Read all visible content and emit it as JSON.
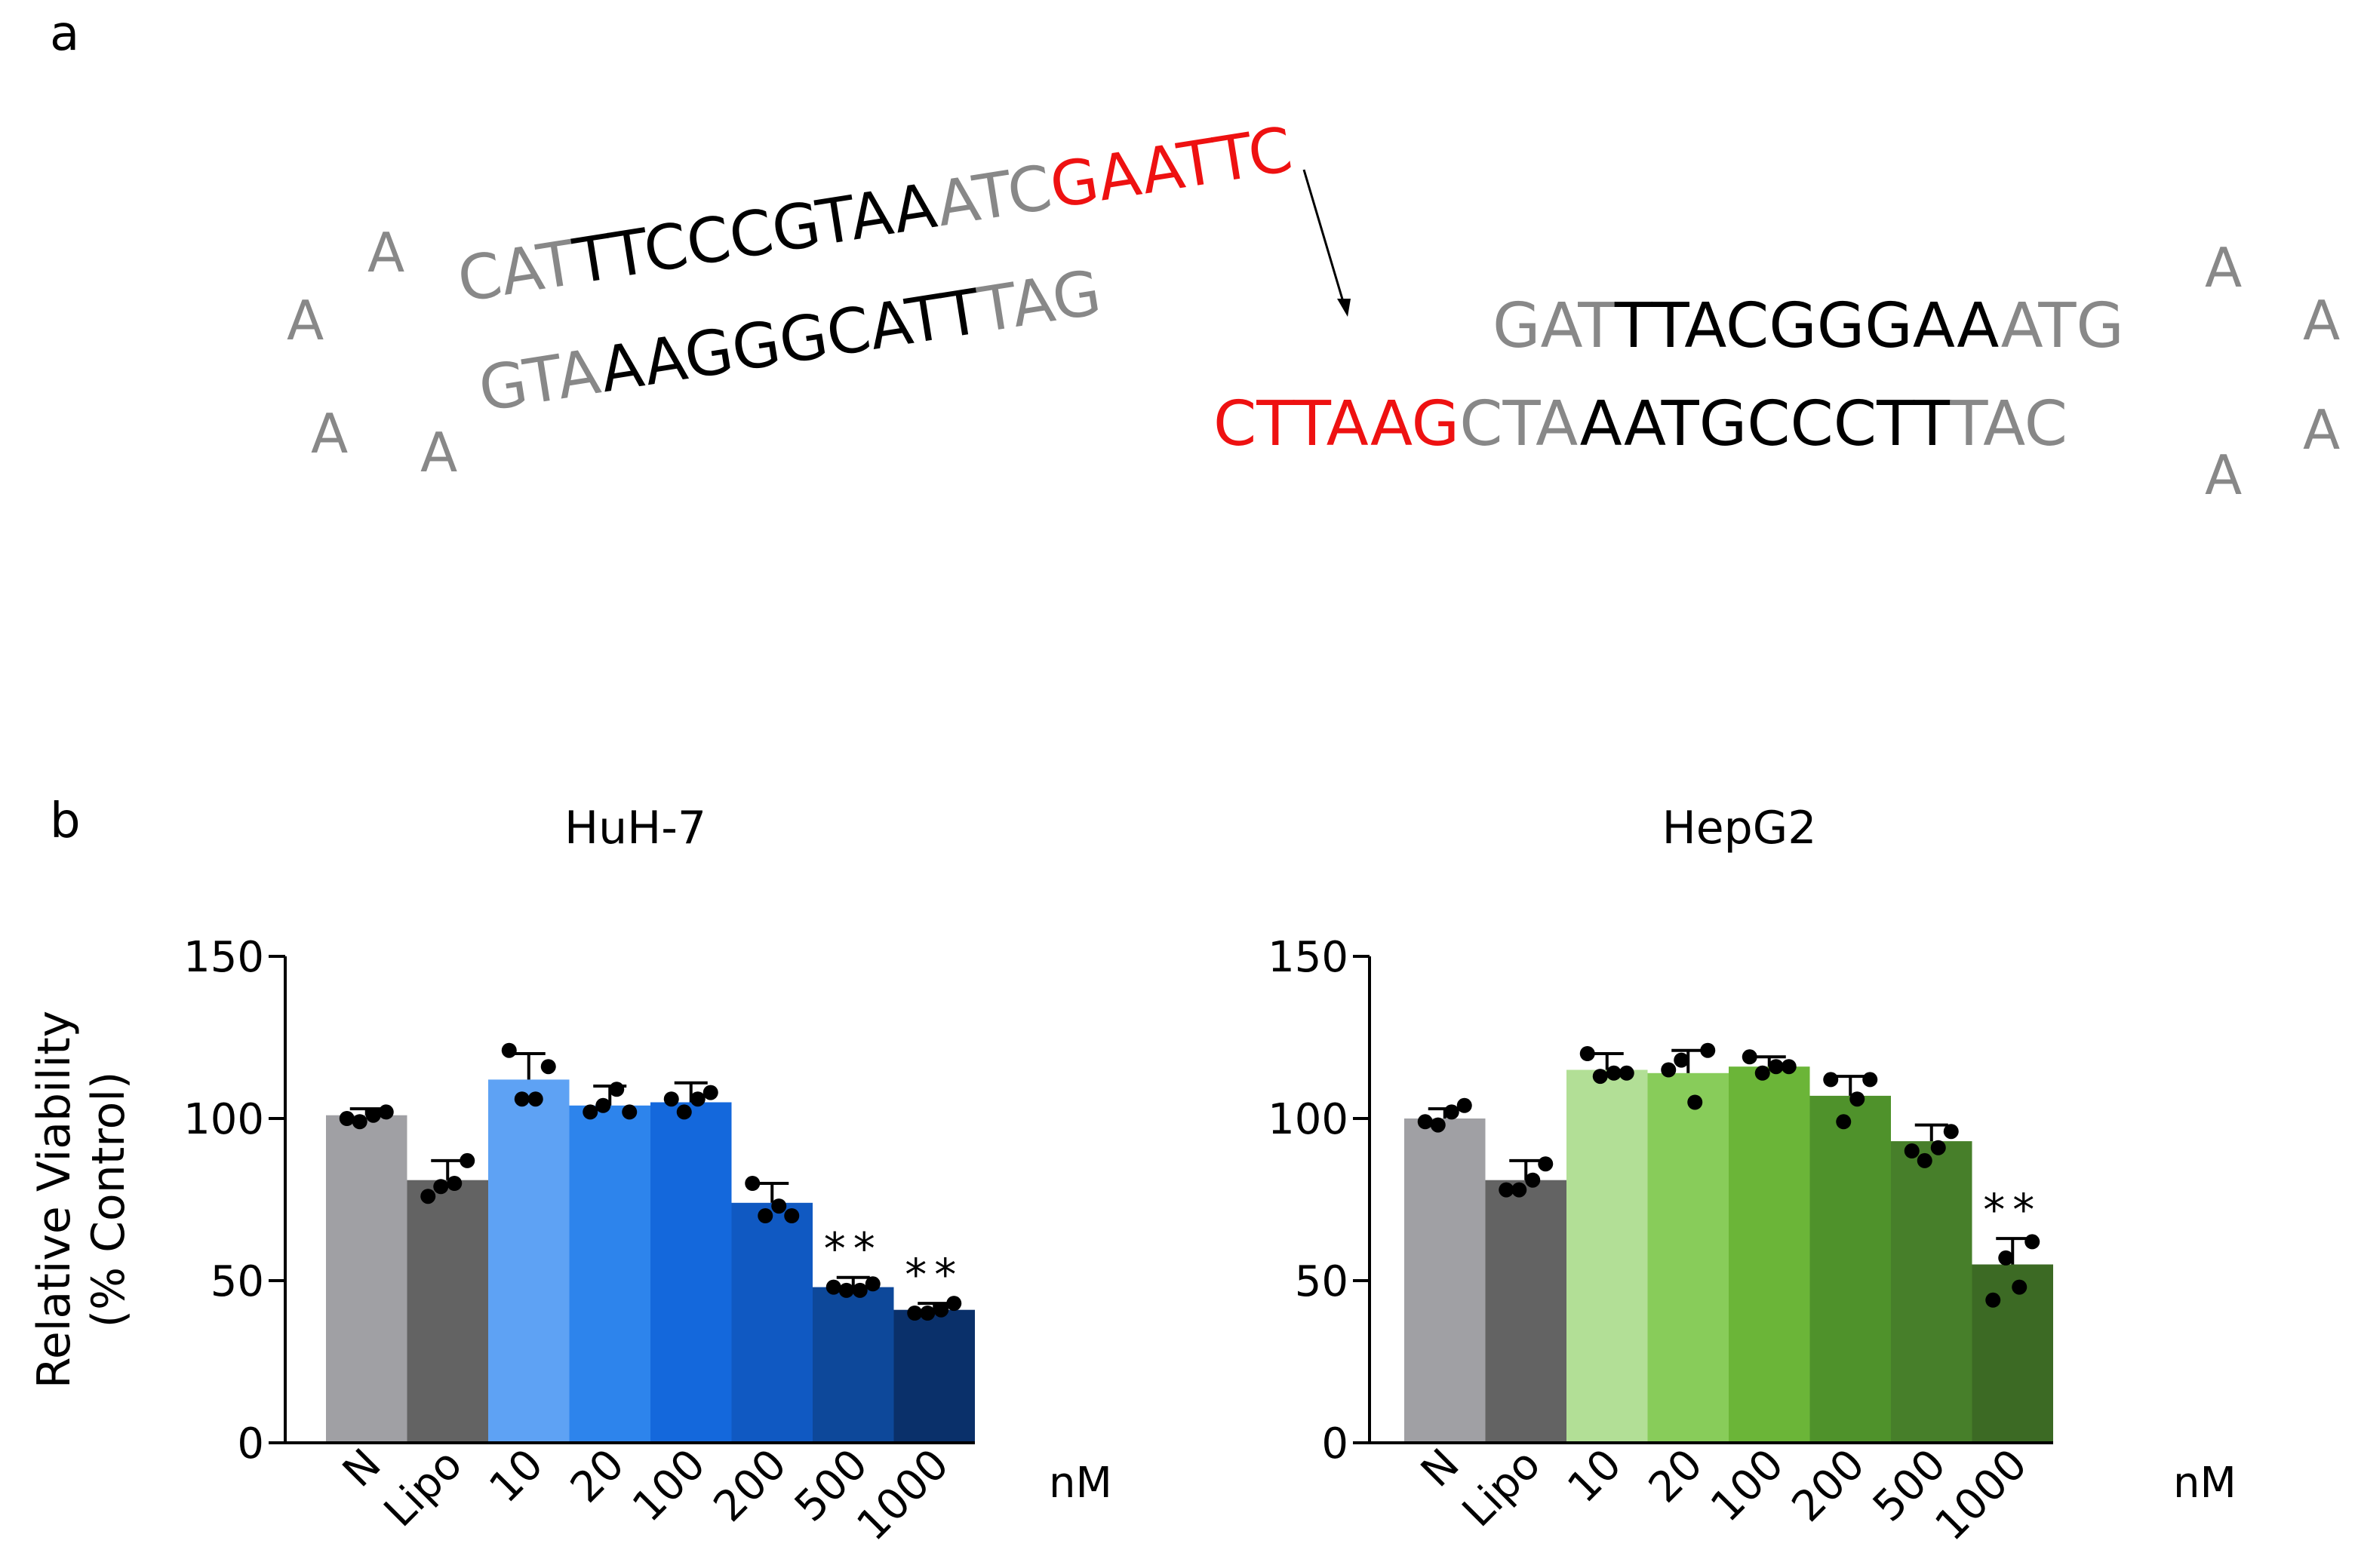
{
  "panel_a": {
    "label": "a",
    "hairpin_left": {
      "loop": [
        "A",
        "A",
        "A",
        "A"
      ],
      "top_strand": [
        {
          "text": "CAT",
          "color": "#888888"
        },
        {
          "text": "TTCCCGTAA",
          "color": "#000000"
        },
        {
          "text": "ATC",
          "color": "#888888"
        },
        {
          "text": "GAATTC",
          "color": "#ee1111"
        }
      ],
      "bottom_strand": [
        {
          "text": "GTA",
          "color": "#888888"
        },
        {
          "text": "AAGGGCATT",
          "color": "#000000"
        },
        {
          "text": "TAG",
          "color": "#888888"
        }
      ]
    },
    "hairpin_right": {
      "loop": [
        "A",
        "A",
        "A",
        "A"
      ],
      "top_strand": [
        {
          "text": "GAT",
          "color": "#888888"
        },
        {
          "text": "TTACGGGAA",
          "color": "#000000"
        },
        {
          "text": "ATG",
          "color": "#888888"
        }
      ],
      "bottom_strand": [
        {
          "text": "CTTAAG",
          "color": "#ee1111"
        },
        {
          "text": "CTA",
          "color": "#888888"
        },
        {
          "text": "AATGCCCTT",
          "color": "#000000"
        },
        {
          "text": "TAC",
          "color": "#888888"
        }
      ]
    }
  },
  "panel_b": {
    "label": "b"
  },
  "chart_data": [
    {
      "type": "bar",
      "title": "HuH-7",
      "ylabel": [
        "Relative Viability",
        "(% Control)"
      ],
      "xlabel": "",
      "unit_label": "nM",
      "categories": [
        "N",
        "Lipo",
        "10",
        "20",
        "100",
        "200",
        "500",
        "1000"
      ],
      "values": [
        101,
        81,
        112,
        104,
        105,
        74,
        48,
        41
      ],
      "errors": [
        2,
        6,
        8,
        6,
        6,
        6,
        3,
        2
      ],
      "points": [
        [
          100,
          99,
          101,
          102
        ],
        [
          76,
          79,
          80,
          87
        ],
        [
          121,
          106,
          106,
          116
        ],
        [
          102,
          104,
          109,
          102
        ],
        [
          106,
          102,
          106,
          108
        ],
        [
          80,
          70,
          73,
          70
        ],
        [
          48,
          47,
          47,
          49
        ],
        [
          40,
          40,
          41,
          43
        ]
      ],
      "colors": [
        "#a0a0a4",
        "#636363",
        "#5ea2f4",
        "#2d84ec",
        "#1468dc",
        "#1059c2",
        "#0d489a",
        "#0a306a"
      ],
      "significance": [
        "",
        "",
        "",
        "",
        "",
        "",
        "**",
        "**"
      ],
      "yticks": [
        0,
        50,
        100,
        150
      ],
      "ylim": [
        0,
        150
      ],
      "grid": false
    },
    {
      "type": "bar",
      "title": "HepG2",
      "ylabel": "",
      "xlabel": "",
      "unit_label": "nM",
      "categories": [
        "N",
        "Lipo",
        "10",
        "20",
        "100",
        "200",
        "500",
        "1000"
      ],
      "values": [
        100,
        81,
        115,
        114,
        116,
        107,
        93,
        55
      ],
      "errors": [
        3,
        6,
        5,
        7,
        3,
        6,
        5,
        8
      ],
      "points": [
        [
          99,
          98,
          102,
          104
        ],
        [
          78,
          78,
          81,
          86
        ],
        [
          120,
          113,
          114,
          114
        ],
        [
          115,
          118,
          105,
          121
        ],
        [
          119,
          114,
          116,
          116
        ],
        [
          112,
          99,
          106,
          112
        ],
        [
          90,
          87,
          91,
          96
        ],
        [
          44,
          57,
          48,
          62
        ]
      ],
      "colors": [
        "#a0a0a4",
        "#636363",
        "#b2df96",
        "#88cc5a",
        "#6bb538",
        "#4f922b",
        "#477f2a",
        "#3c6a24"
      ],
      "significance": [
        "",
        "",
        "",
        "",
        "",
        "",
        "",
        "**"
      ],
      "yticks": [
        0,
        50,
        100,
        150
      ],
      "ylim": [
        0,
        150
      ],
      "grid": false
    }
  ]
}
